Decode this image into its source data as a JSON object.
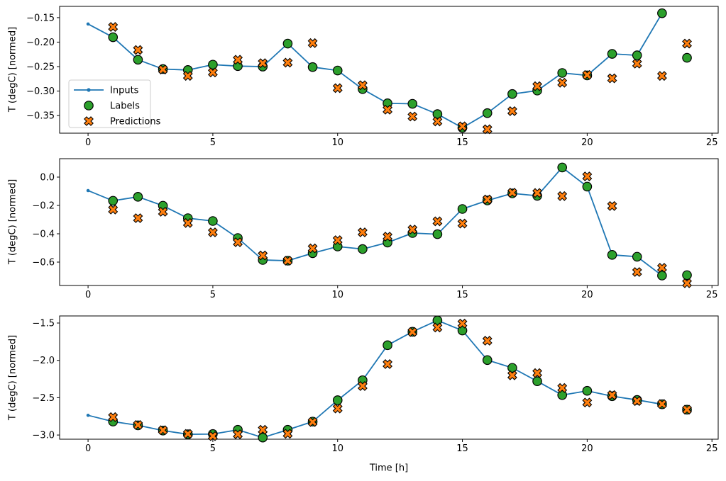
{
  "figure": {
    "xlabel": "Time [h]",
    "ylabel": "T (degC) [normed]",
    "background": "#ffffff",
    "colors": {
      "inputs": "#1f77b4",
      "labels": "#2ca02c",
      "predictions": "#ff7f0e",
      "marker_edge": "#000000",
      "axes": "#000000",
      "legend_border": "#cccccc"
    },
    "legend": {
      "position": "upper-left-of-first-subplot",
      "items": [
        {
          "label": "Inputs",
          "type": "line-dot",
          "color": "#1f77b4"
        },
        {
          "label": "Labels",
          "type": "circle",
          "color": "#2ca02c"
        },
        {
          "label": "Predictions",
          "type": "x",
          "color": "#ff7f0e"
        }
      ]
    }
  },
  "chart_data": [
    {
      "type": "line",
      "title": "",
      "xlabel": "",
      "ylabel": "T (degC) [normed]",
      "grid": false,
      "xlim": [
        -1.14,
        25.25
      ],
      "ylim": [
        -0.386,
        -0.127
      ],
      "x_ticks": [
        0,
        5,
        10,
        15,
        20,
        25
      ],
      "x_tick_labels": [
        "0",
        "5",
        "10",
        "15",
        "20",
        "25"
      ],
      "y_ticks": [
        -0.15,
        -0.2,
        -0.25,
        -0.3,
        -0.35
      ],
      "y_tick_labels": [
        "−0.15",
        "−0.20",
        "−0.25",
        "−0.30",
        "−0.35"
      ],
      "series": [
        {
          "name": "Inputs",
          "x": [
            0,
            1,
            2,
            3,
            4,
            5,
            6,
            7,
            8,
            9,
            10,
            11,
            12,
            13,
            14,
            15,
            16,
            17,
            18,
            19,
            20,
            21,
            22,
            23
          ],
          "values": [
            -0.163,
            -0.19,
            -0.236,
            -0.255,
            -0.257,
            -0.246,
            -0.249,
            -0.25,
            -0.203,
            -0.251,
            -0.258,
            -0.296,
            -0.325,
            -0.326,
            -0.347,
            -0.375,
            -0.345,
            -0.306,
            -0.299,
            -0.263,
            -0.268,
            -0.224,
            -0.227,
            -0.141
          ]
        },
        {
          "name": "Labels",
          "x": [
            1,
            2,
            3,
            4,
            5,
            6,
            7,
            8,
            9,
            10,
            11,
            12,
            13,
            14,
            15,
            16,
            17,
            18,
            19,
            20,
            21,
            22,
            23,
            24
          ],
          "values": [
            -0.19,
            -0.236,
            -0.255,
            -0.257,
            -0.246,
            -0.249,
            -0.25,
            -0.203,
            -0.251,
            -0.258,
            -0.296,
            -0.325,
            -0.326,
            -0.347,
            -0.375,
            -0.345,
            -0.306,
            -0.299,
            -0.263,
            -0.268,
            -0.224,
            -0.227,
            -0.141,
            -0.232
          ]
        },
        {
          "name": "Predictions",
          "x": [
            1,
            2,
            3,
            4,
            5,
            6,
            7,
            8,
            9,
            10,
            11,
            12,
            13,
            14,
            15,
            16,
            17,
            18,
            19,
            20,
            21,
            22,
            23,
            24
          ],
          "values": [
            -0.169,
            -0.216,
            -0.256,
            -0.269,
            -0.262,
            -0.236,
            -0.243,
            -0.242,
            -0.202,
            -0.294,
            -0.288,
            -0.338,
            -0.352,
            -0.362,
            -0.372,
            -0.378,
            -0.341,
            -0.29,
            -0.283,
            -0.267,
            -0.274,
            -0.244,
            -0.269,
            -0.203
          ]
        }
      ]
    },
    {
      "type": "line",
      "title": "",
      "xlabel": "",
      "ylabel": "T (degC) [normed]",
      "grid": false,
      "xlim": [
        -1.14,
        25.25
      ],
      "ylim": [
        -0.765,
        0.13
      ],
      "x_ticks": [
        0,
        5,
        10,
        15,
        20,
        25
      ],
      "x_tick_labels": [
        "0",
        "5",
        "10",
        "15",
        "20",
        "25"
      ],
      "y_ticks": [
        0.0,
        -0.2,
        -0.4,
        -0.6
      ],
      "y_tick_labels": [
        "0.0",
        "−0.2",
        "−0.4",
        "−0.6"
      ],
      "series": [
        {
          "name": "Inputs",
          "x": [
            0,
            1,
            2,
            3,
            4,
            5,
            6,
            7,
            8,
            9,
            10,
            11,
            12,
            13,
            14,
            15,
            16,
            17,
            18,
            19,
            20,
            21,
            22,
            23
          ],
          "values": [
            -0.095,
            -0.167,
            -0.139,
            -0.202,
            -0.29,
            -0.31,
            -0.43,
            -0.585,
            -0.59,
            -0.537,
            -0.49,
            -0.508,
            -0.462,
            -0.395,
            -0.403,
            -0.225,
            -0.165,
            -0.115,
            -0.132,
            0.068,
            -0.067,
            -0.549,
            -0.562,
            -0.695
          ]
        },
        {
          "name": "Labels",
          "x": [
            1,
            2,
            3,
            4,
            5,
            6,
            7,
            8,
            9,
            10,
            11,
            12,
            13,
            14,
            15,
            16,
            17,
            18,
            19,
            20,
            21,
            22,
            23,
            24
          ],
          "values": [
            -0.167,
            -0.139,
            -0.202,
            -0.29,
            -0.31,
            -0.43,
            -0.585,
            -0.59,
            -0.537,
            -0.49,
            -0.508,
            -0.462,
            -0.395,
            -0.403,
            -0.225,
            -0.165,
            -0.115,
            -0.132,
            0.068,
            -0.067,
            -0.549,
            -0.562,
            -0.695,
            -0.692
          ]
        },
        {
          "name": "Predictions",
          "x": [
            1,
            2,
            3,
            4,
            5,
            6,
            7,
            8,
            9,
            10,
            11,
            12,
            13,
            14,
            15,
            16,
            17,
            18,
            19,
            20,
            21,
            22,
            23,
            24
          ],
          "values": [
            -0.229,
            -0.29,
            -0.245,
            -0.324,
            -0.39,
            -0.46,
            -0.553,
            -0.59,
            -0.503,
            -0.445,
            -0.39,
            -0.42,
            -0.37,
            -0.312,
            -0.328,
            -0.158,
            -0.11,
            -0.112,
            -0.134,
            0.005,
            -0.204,
            -0.67,
            -0.64,
            -0.749
          ]
        }
      ]
    },
    {
      "type": "line",
      "title": "",
      "xlabel": "Time [h]",
      "ylabel": "T (degC) [normed]",
      "grid": false,
      "xlim": [
        -1.14,
        25.25
      ],
      "ylim": [
        -3.056,
        -1.405
      ],
      "x_ticks": [
        0,
        5,
        10,
        15,
        20,
        25
      ],
      "x_tick_labels": [
        "0",
        "5",
        "10",
        "15",
        "20",
        "25"
      ],
      "y_ticks": [
        -1.5,
        -2.0,
        -2.5,
        -3.0
      ],
      "y_tick_labels": [
        "−1.5",
        "−2.0",
        "−2.5",
        "−3.0"
      ],
      "series": [
        {
          "name": "Inputs",
          "x": [
            0,
            1,
            2,
            3,
            4,
            5,
            6,
            7,
            8,
            9,
            10,
            11,
            12,
            13,
            14,
            15,
            16,
            17,
            18,
            19,
            20,
            21,
            22,
            23
          ],
          "values": [
            -2.736,
            -2.82,
            -2.87,
            -2.94,
            -2.99,
            -2.987,
            -2.93,
            -3.034,
            -2.93,
            -2.82,
            -2.534,
            -2.266,
            -1.797,
            -1.617,
            -1.465,
            -1.6,
            -1.996,
            -2.1,
            -2.28,
            -2.465,
            -2.408,
            -2.48,
            -2.53,
            -2.588
          ]
        },
        {
          "name": "Labels",
          "x": [
            1,
            2,
            3,
            4,
            5,
            6,
            7,
            8,
            9,
            10,
            11,
            12,
            13,
            14,
            15,
            16,
            17,
            18,
            19,
            20,
            21,
            22,
            23,
            24
          ],
          "values": [
            -2.82,
            -2.87,
            -2.94,
            -2.99,
            -2.987,
            -2.93,
            -3.034,
            -2.93,
            -2.82,
            -2.534,
            -2.266,
            -1.797,
            -1.617,
            -1.465,
            -1.6,
            -1.996,
            -2.1,
            -2.28,
            -2.465,
            -2.408,
            -2.48,
            -2.53,
            -2.588,
            -2.66
          ]
        },
        {
          "name": "Predictions",
          "x": [
            1,
            2,
            3,
            4,
            5,
            6,
            7,
            8,
            9,
            10,
            11,
            12,
            13,
            14,
            15,
            16,
            17,
            18,
            19,
            20,
            21,
            22,
            23,
            24
          ],
          "values": [
            -2.76,
            -2.865,
            -2.935,
            -2.985,
            -3.015,
            -2.99,
            -2.93,
            -2.983,
            -2.825,
            -2.645,
            -2.344,
            -2.05,
            -1.62,
            -1.56,
            -1.507,
            -1.737,
            -2.2,
            -2.17,
            -2.37,
            -2.565,
            -2.465,
            -2.545,
            -2.585,
            -2.66
          ]
        }
      ]
    }
  ]
}
